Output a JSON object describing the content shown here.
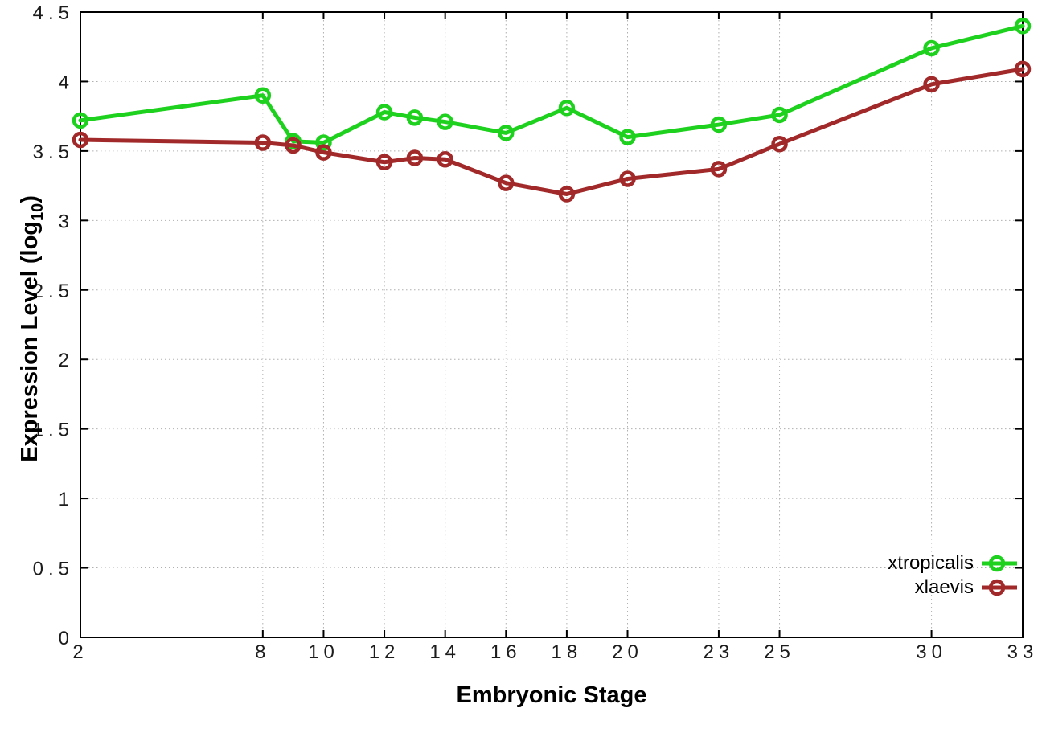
{
  "figure": {
    "xlabel": "Embryonic Stage",
    "ylabel_parts": {
      "prefix": "Expression Level (log",
      "subscript": "10",
      "suffix": ")"
    }
  },
  "chart_data": {
    "type": "line",
    "title": "",
    "xlabel": "Embryonic Stage",
    "ylabel": "Expression Level (log10)",
    "xlim": [
      2,
      33
    ],
    "ylim": [
      0,
      4.5
    ],
    "grid": true,
    "legend_position": "inside bottom-right",
    "x_ticks": [
      2,
      8,
      10,
      12,
      14,
      16,
      18,
      20,
      23,
      25,
      30,
      33
    ],
    "x_tick_labels": [
      "2",
      "8",
      "10",
      "12",
      "14",
      "16",
      "18",
      "20",
      "23",
      "25",
      "30",
      "33"
    ],
    "y_ticks": [
      0,
      0.5,
      1,
      1.5,
      2,
      2.5,
      3,
      3.5,
      4,
      4.5
    ],
    "y_tick_labels": [
      "0",
      "0.5",
      "1",
      "1.5",
      "2",
      "2.5",
      "3",
      "3.5",
      "4",
      "4.5"
    ],
    "x": [
      2,
      8,
      9,
      10,
      12,
      13,
      14,
      16,
      18,
      20,
      23,
      25,
      30,
      33
    ],
    "series": [
      {
        "name": "xtropicalis",
        "color": "#1fd11f",
        "values": [
          3.72,
          3.9,
          3.57,
          3.56,
          3.78,
          3.74,
          3.71,
          3.63,
          3.81,
          3.6,
          3.69,
          3.76,
          4.24,
          4.4
        ]
      },
      {
        "name": "xlaevis",
        "color": "#a22929",
        "values": [
          3.58,
          3.56,
          3.54,
          3.49,
          3.42,
          3.45,
          3.44,
          3.27,
          3.19,
          3.3,
          3.37,
          3.55,
          3.98,
          4.09
        ]
      }
    ],
    "colors": {
      "grid": "#b0b0b0",
      "axis": "#000000",
      "tick_label": "#1c1c1c"
    }
  }
}
